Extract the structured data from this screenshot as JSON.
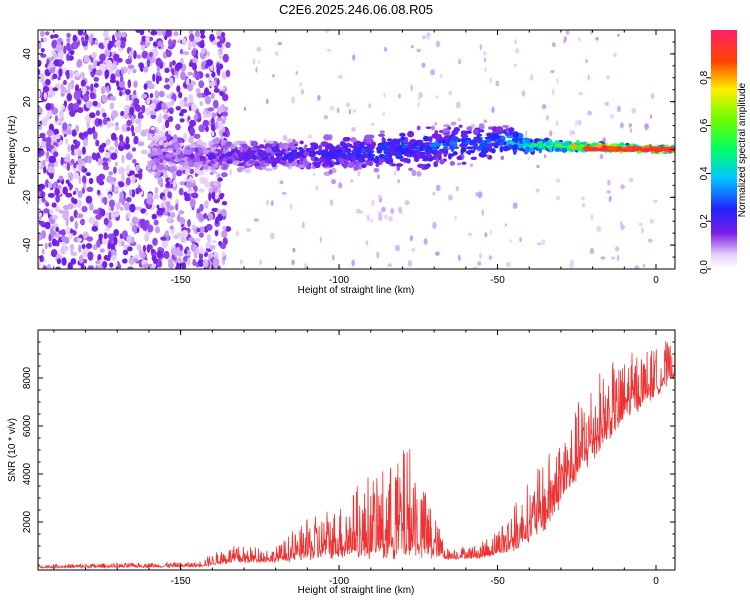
{
  "title": "C2E6.2025.246.06.08.R05",
  "chart_data": [
    {
      "type": "heatmap",
      "title": "C2E6.2025.246.06.08.R05",
      "xlabel": "Height of straight line (km)",
      "ylabel": "Frequency (Hz)",
      "xlim": [
        -195,
        6
      ],
      "ylim": [
        -50,
        50
      ],
      "xticks": [
        -150,
        -100,
        -50,
        0
      ],
      "xtick_labels": [
        "-150",
        "-100",
        "-50",
        "0"
      ],
      "yticks": [
        -40,
        -20,
        0,
        20,
        40
      ],
      "ytick_labels": [
        "-40",
        "-20",
        "0",
        "20",
        "40"
      ],
      "colorbar": {
        "label": "Normalized spectral amplitude",
        "range": [
          0,
          1
        ],
        "ticks": [
          0.0,
          0.2,
          0.4,
          0.6,
          0.8
        ],
        "tick_labels": [
          "0.0",
          "0.2",
          "0.4",
          "0.6",
          "0.8"
        ]
      },
      "band": {
        "description_points": [
          {
            "x": -195,
            "y_center": 0,
            "spread": 50,
            "amp": 0.05
          },
          {
            "x": -150,
            "y_center": -3,
            "spread": 8,
            "amp": 0.15
          },
          {
            "x": -100,
            "y_center": -2,
            "spread": 10,
            "amp": 0.25
          },
          {
            "x": -75,
            "y_center": 0,
            "spread": 12,
            "amp": 0.3
          },
          {
            "x": -50,
            "y_center": 4,
            "spread": 10,
            "amp": 0.3
          },
          {
            "x": -40,
            "y_center": 2,
            "spread": 4,
            "amp": 0.5
          },
          {
            "x": -20,
            "y_center": 1,
            "spread": 2,
            "amp": 0.85
          },
          {
            "x": 5,
            "y_center": 0,
            "spread": 1.5,
            "amp": 1.0
          }
        ]
      }
    },
    {
      "type": "line",
      "xlabel": "Height of straight line (km)",
      "ylabel": "SNR (10 * v/v)",
      "xlim": [
        -195,
        6
      ],
      "ylim": [
        0,
        10000
      ],
      "xticks": [
        -150,
        -100,
        -50,
        0
      ],
      "xtick_labels": [
        "-150",
        "-100",
        "-50",
        "0"
      ],
      "yticks": [
        2000,
        4000,
        6000,
        8000
      ],
      "ytick_labels": [
        "2000",
        "4000",
        "6000",
        "8000"
      ],
      "color": "#ee3333",
      "envelope": [
        {
          "x": -195,
          "base": 100,
          "amp": 150
        },
        {
          "x": -145,
          "base": 150,
          "amp": 200
        },
        {
          "x": -135,
          "base": 350,
          "amp": 700
        },
        {
          "x": -120,
          "base": 400,
          "amp": 600
        },
        {
          "x": -110,
          "base": 600,
          "amp": 1600
        },
        {
          "x": -100,
          "base": 800,
          "amp": 2200
        },
        {
          "x": -90,
          "base": 900,
          "amp": 3200
        },
        {
          "x": -78,
          "base": 1100,
          "amp": 4500
        },
        {
          "x": -70,
          "base": 700,
          "amp": 1800
        },
        {
          "x": -66,
          "base": 500,
          "amp": 500
        },
        {
          "x": -55,
          "base": 550,
          "amp": 600
        },
        {
          "x": -45,
          "base": 1000,
          "amp": 1800
        },
        {
          "x": -35,
          "base": 2000,
          "amp": 2800
        },
        {
          "x": -28,
          "base": 3500,
          "amp": 3000
        },
        {
          "x": -20,
          "base": 5000,
          "amp": 3200
        },
        {
          "x": -10,
          "base": 6500,
          "amp": 2500
        },
        {
          "x": 0,
          "base": 7500,
          "amp": 2000
        },
        {
          "x": 6,
          "base": 8200,
          "amp": 1600
        }
      ]
    }
  ]
}
